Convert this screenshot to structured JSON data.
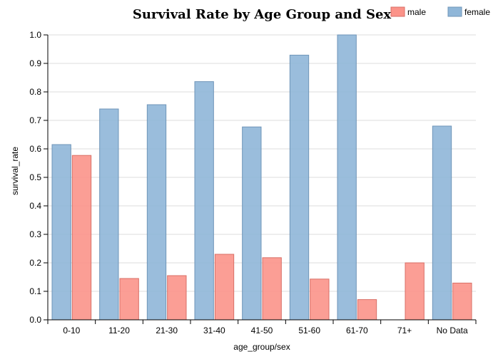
{
  "chart_data": {
    "type": "bar",
    "title": "Survival Rate by Age Group and Sex",
    "xlabel": "age_group/sex",
    "ylabel": "survival_rate",
    "ylim": [
      0,
      1.0
    ],
    "yticks": [
      "0.0",
      "0.1",
      "0.2",
      "0.3",
      "0.4",
      "0.5",
      "0.6",
      "0.7",
      "0.8",
      "0.9",
      "1.0"
    ],
    "grid": true,
    "legend_position": "top-right",
    "categories": [
      "0-10",
      "11-20",
      "21-30",
      "31-40",
      "41-50",
      "51-60",
      "61-70",
      "71+",
      "No Data"
    ],
    "series": [
      {
        "name": "female",
        "color": "#8fb6d8",
        "values": [
          0.615,
          0.74,
          0.755,
          0.836,
          0.677,
          0.929,
          1.0,
          0.0,
          0.68
        ]
      },
      {
        "name": "male",
        "color": "#fb9389",
        "values": [
          0.577,
          0.145,
          0.155,
          0.23,
          0.218,
          0.143,
          0.071,
          0.2,
          0.129
        ]
      }
    ],
    "legend": [
      {
        "name": "male",
        "color": "#fb9389"
      },
      {
        "name": "female",
        "color": "#8fb6d8"
      }
    ]
  }
}
